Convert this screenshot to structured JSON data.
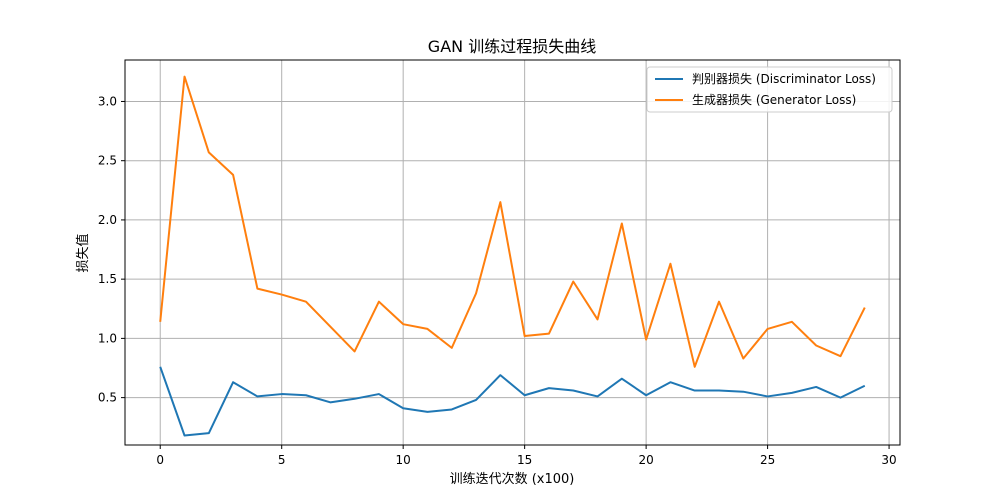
{
  "chart_data": {
    "type": "line",
    "title": "GAN 训练过程损失曲线",
    "xlabel": "训练迭代次数 (x100)",
    "ylabel": "损失值",
    "xlim": [
      -1.45,
      30.45
    ],
    "ylim": [
      0.1,
      3.35
    ],
    "xticks": [
      0,
      5,
      10,
      15,
      20,
      25,
      30
    ],
    "yticks": [
      0.5,
      1.0,
      1.5,
      2.0,
      2.5,
      3.0
    ],
    "xtick_labels": [
      "0",
      "5",
      "10",
      "15",
      "20",
      "25",
      "30"
    ],
    "ytick_labels": [
      "0.5",
      "1.0",
      "1.5",
      "2.0",
      "2.5",
      "3.0"
    ],
    "grid": true,
    "legend_position": "top-right",
    "x": [
      0,
      1,
      2,
      3,
      4,
      5,
      6,
      7,
      8,
      9,
      10,
      11,
      12,
      13,
      14,
      15,
      16,
      17,
      18,
      19,
      20,
      21,
      22,
      23,
      24,
      25,
      26,
      27,
      28,
      29
    ],
    "series": [
      {
        "name": "判别器损失 (Discriminator Loss)",
        "color": "#1f77b4",
        "values": [
          0.76,
          0.18,
          0.2,
          0.63,
          0.51,
          0.53,
          0.52,
          0.46,
          0.49,
          0.53,
          0.41,
          0.38,
          0.4,
          0.48,
          0.69,
          0.52,
          0.58,
          0.56,
          0.51,
          0.66,
          0.52,
          0.63,
          0.56,
          0.56,
          0.55,
          0.51,
          0.54,
          0.59,
          0.5,
          0.6
        ]
      },
      {
        "name": "生成器损失 (Generator Loss)",
        "color": "#ff7f0e",
        "values": [
          1.14,
          3.21,
          2.57,
          2.38,
          1.42,
          1.37,
          1.31,
          1.1,
          0.89,
          1.31,
          1.12,
          1.08,
          0.92,
          1.38,
          2.15,
          1.02,
          1.04,
          1.48,
          1.16,
          1.97,
          0.99,
          1.63,
          0.76,
          1.31,
          0.83,
          1.08,
          1.14,
          0.94,
          0.85,
          1.26
        ]
      }
    ]
  }
}
